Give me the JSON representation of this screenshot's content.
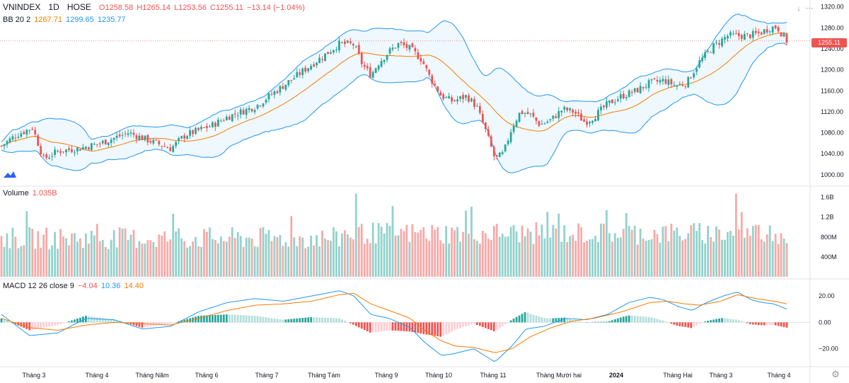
{
  "header": {
    "symbol": "VNINDEX",
    "interval": "1D",
    "exchange": "HOSE",
    "open": "O1258.58",
    "high": "H1265.14",
    "low": "L1253.56",
    "close": "C1255.11",
    "change": "−13.14 (−1.04%)"
  },
  "bb_legend": {
    "label": "BB 20 2",
    "basis": "1267.71",
    "upper": "1299.65",
    "lower": "1235.77"
  },
  "volume_legend": {
    "label": "Volume",
    "value": "1.035B"
  },
  "macd_legend": {
    "label": "MACD 12 26 close 9",
    "hist": "−4.04",
    "macd": "10.36",
    "signal": "14.40"
  },
  "last_price_tag": "1255.11",
  "colors": {
    "up": "#26a69a",
    "down": "#ef5350",
    "basis": "#f57c00",
    "band": "#2196f3",
    "macd": "#2196f3",
    "signal": "#f57c00"
  },
  "icons": {
    "arrow_down": "arrow-down-icon",
    "menu": "menu-icon",
    "settings": "gear-icon",
    "logo": "tradingview-logo-icon"
  },
  "chart_data": {
    "type": "candlestick",
    "title": "VNINDEX 1D HOSE",
    "x_labels": [
      "Tháng 3",
      "Tháng 4",
      "Tháng Năm",
      "Tháng 6",
      "Tháng 7",
      "Tháng Tám",
      "Tháng 9",
      "Tháng 10",
      "Tháng 11",
      "Tháng Mười hai",
      "2024",
      "Tháng Hai",
      "Tháng 3",
      "Tháng 4"
    ],
    "price_axis": {
      "ticks": [
        "1320.00",
        "1280.00",
        "1240.00",
        "1200.00",
        "1160.00",
        "1120.00",
        "1080.00",
        "1040.00",
        "1000.00"
      ],
      "ylim": [
        985,
        1325
      ]
    },
    "volume_axis": {
      "ticks": [
        "1.6B",
        "1.2B",
        "800M",
        "400M"
      ],
      "ylim": [
        0,
        1.75
      ]
    },
    "macd_axis": {
      "ticks": [
        "20.00",
        "0.00",
        "−20.00"
      ],
      "ylim": [
        -32,
        27
      ]
    },
    "close_path": [
      [
        0,
        1055
      ],
      [
        10,
        1075
      ],
      [
        22,
        1090
      ],
      [
        30,
        1030
      ],
      [
        40,
        1045
      ],
      [
        55,
        1050
      ],
      [
        70,
        1060
      ],
      [
        90,
        1080
      ],
      [
        100,
        1070
      ],
      [
        110,
        1060
      ],
      [
        120,
        1050
      ],
      [
        130,
        1075
      ],
      [
        140,
        1085
      ],
      [
        150,
        1095
      ],
      [
        160,
        1110
      ],
      [
        170,
        1120
      ],
      [
        180,
        1130
      ],
      [
        190,
        1150
      ],
      [
        200,
        1170
      ],
      [
        210,
        1190
      ],
      [
        220,
        1210
      ],
      [
        230,
        1230
      ],
      [
        240,
        1250
      ],
      [
        250,
        1248
      ],
      [
        256,
        1210
      ],
      [
        262,
        1190
      ],
      [
        268,
        1215
      ],
      [
        275,
        1235
      ],
      [
        282,
        1250
      ],
      [
        290,
        1240
      ],
      [
        298,
        1220
      ],
      [
        304,
        1185
      ],
      [
        312,
        1150
      ],
      [
        320,
        1140
      ],
      [
        330,
        1150
      ],
      [
        337,
        1130
      ],
      [
        344,
        1080
      ],
      [
        350,
        1030
      ],
      [
        356,
        1040
      ],
      [
        362,
        1090
      ],
      [
        368,
        1120
      ],
      [
        375,
        1115
      ],
      [
        382,
        1095
      ],
      [
        390,
        1105
      ],
      [
        398,
        1125
      ],
      [
        406,
        1120
      ],
      [
        414,
        1100
      ],
      [
        420,
        1110
      ],
      [
        430,
        1135
      ],
      [
        440,
        1150
      ],
      [
        450,
        1160
      ],
      [
        460,
        1175
      ],
      [
        470,
        1180
      ],
      [
        478,
        1170
      ],
      [
        486,
        1175
      ],
      [
        495,
        1215
      ],
      [
        505,
        1245
      ],
      [
        515,
        1265
      ],
      [
        522,
        1265
      ],
      [
        530,
        1265
      ],
      [
        538,
        1270
      ],
      [
        545,
        1280
      ],
      [
        550,
        1282
      ],
      [
        557,
        1255
      ]
    ],
    "macd_path": [
      [
        0,
        6
      ],
      [
        20,
        -10
      ],
      [
        40,
        -8
      ],
      [
        60,
        3
      ],
      [
        80,
        2
      ],
      [
        100,
        -5
      ],
      [
        120,
        -3
      ],
      [
        140,
        8
      ],
      [
        160,
        15
      ],
      [
        180,
        18
      ],
      [
        200,
        16
      ],
      [
        220,
        20
      ],
      [
        240,
        24
      ],
      [
        250,
        20
      ],
      [
        262,
        6
      ],
      [
        275,
        3
      ],
      [
        290,
        -4
      ],
      [
        300,
        -15
      ],
      [
        312,
        -25
      ],
      [
        320,
        -24
      ],
      [
        335,
        -20
      ],
      [
        350,
        -30
      ],
      [
        362,
        -18
      ],
      [
        372,
        -5
      ],
      [
        385,
        -3
      ],
      [
        400,
        3
      ],
      [
        415,
        2
      ],
      [
        430,
        6
      ],
      [
        445,
        15
      ],
      [
        460,
        19
      ],
      [
        470,
        17
      ],
      [
        480,
        12
      ],
      [
        490,
        9
      ],
      [
        500,
        15
      ],
      [
        512,
        20
      ],
      [
        522,
        23
      ],
      [
        532,
        17
      ],
      [
        540,
        15
      ],
      [
        548,
        14
      ],
      [
        557,
        10
      ]
    ],
    "signal_path": [
      [
        0,
        3
      ],
      [
        20,
        -4
      ],
      [
        40,
        -6
      ],
      [
        60,
        -2
      ],
      [
        80,
        0
      ],
      [
        100,
        -1
      ],
      [
        120,
        -2
      ],
      [
        140,
        3
      ],
      [
        160,
        9
      ],
      [
        180,
        13
      ],
      [
        200,
        14
      ],
      [
        220,
        16
      ],
      [
        240,
        21
      ],
      [
        250,
        22
      ],
      [
        262,
        14
      ],
      [
        275,
        9
      ],
      [
        290,
        3
      ],
      [
        300,
        -6
      ],
      [
        312,
        -14
      ],
      [
        322,
        -18
      ],
      [
        335,
        -19
      ],
      [
        350,
        -23
      ],
      [
        362,
        -20
      ],
      [
        375,
        -11
      ],
      [
        390,
        -4
      ],
      [
        405,
        1
      ],
      [
        420,
        3
      ],
      [
        440,
        8
      ],
      [
        460,
        15
      ],
      [
        472,
        16
      ],
      [
        485,
        14
      ],
      [
        495,
        13
      ],
      [
        510,
        16
      ],
      [
        522,
        21
      ],
      [
        535,
        18
      ],
      [
        548,
        16
      ],
      [
        557,
        14
      ]
    ]
  }
}
